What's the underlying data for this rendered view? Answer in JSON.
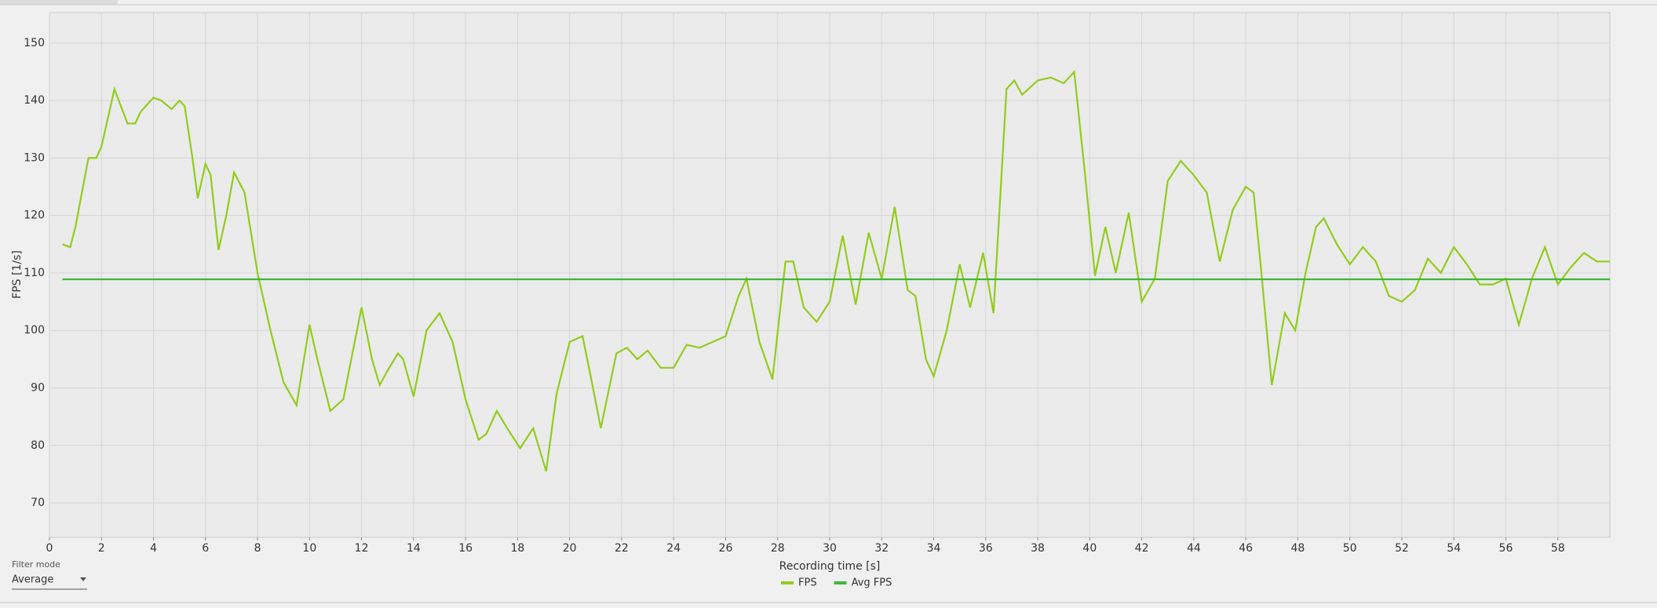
{
  "chart_data": {
    "type": "line",
    "x_label": "Recording time [s]",
    "y_label": "FPS [1/s]",
    "xlim": [
      0,
      60
    ],
    "ylim": [
      64,
      155.3
    ],
    "xticks": [
      0,
      2,
      4,
      6,
      8,
      10,
      12,
      14,
      16,
      18,
      20,
      22,
      24,
      26,
      28,
      30,
      32,
      34,
      36,
      38,
      40,
      42,
      44,
      46,
      48,
      50,
      52,
      54,
      56,
      58
    ],
    "yticks": [
      70,
      80,
      90,
      100,
      110,
      120,
      130,
      140,
      150
    ],
    "grid": true,
    "legend": "bottom",
    "series": [
      {
        "name": "FPS",
        "color": "#93cc1c",
        "x": [
          0.5,
          0.8,
          1.0,
          1.5,
          1.8,
          2.0,
          2.5,
          3.0,
          3.3,
          3.5,
          4.0,
          4.3,
          4.7,
          5.0,
          5.2,
          5.5,
          5.7,
          6.0,
          6.2,
          6.5,
          6.8,
          7.1,
          7.5,
          8.0,
          8.5,
          9.0,
          9.5,
          10.0,
          10.3,
          10.8,
          11.3,
          12.0,
          12.4,
          12.7,
          13.0,
          13.4,
          13.6,
          14.0,
          14.5,
          15.0,
          15.5,
          16.0,
          16.5,
          16.8,
          17.2,
          17.6,
          18.1,
          18.6,
          19.1,
          19.5,
          20.0,
          20.5,
          20.9,
          21.2,
          21.8,
          22.2,
          22.6,
          23.0,
          23.5,
          24.0,
          24.5,
          25.0,
          25.5,
          26.0,
          26.5,
          26.8,
          27.3,
          27.8,
          28.3,
          28.6,
          29.0,
          29.5,
          30.0,
          30.5,
          31.0,
          31.5,
          32.0,
          32.5,
          33.0,
          33.3,
          33.7,
          34.0,
          34.5,
          35.0,
          35.4,
          35.9,
          36.3,
          36.8,
          37.1,
          37.4,
          38.0,
          38.5,
          39.0,
          39.4,
          39.8,
          40.2,
          40.6,
          41.0,
          41.5,
          42.0,
          42.5,
          43.0,
          43.5,
          44.0,
          44.5,
          45.0,
          45.5,
          46.0,
          46.3,
          46.6,
          47.0,
          47.5,
          47.9,
          48.3,
          48.7,
          49.0,
          49.5,
          50.0,
          50.5,
          51.0,
          51.5,
          52.0,
          52.5,
          53.0,
          53.5,
          54.0,
          54.5,
          55.0,
          55.5,
          56.0,
          56.5,
          57.0,
          57.5,
          58.0,
          58.5,
          59.0,
          59.5,
          60.0
        ],
        "values": [
          115,
          114.5,
          118,
          130,
          130,
          132,
          142,
          136,
          136,
          138,
          140.5,
          140,
          138.5,
          140,
          139,
          130,
          123,
          129,
          127,
          114,
          120,
          127.5,
          124,
          110,
          100,
          91,
          87,
          101,
          95,
          86,
          88,
          104,
          95,
          90.5,
          93,
          96,
          95,
          88.5,
          100,
          103,
          98,
          88,
          81,
          82,
          86,
          83,
          79.5,
          83,
          75.5,
          89,
          98,
          99,
          90,
          83,
          96,
          97,
          95,
          96.5,
          93.5,
          93.5,
          97.5,
          97,
          98,
          99,
          106,
          109,
          98,
          91.5,
          112,
          112,
          104,
          101.5,
          105,
          116.5,
          104.5,
          117,
          109,
          121.5,
          107,
          106,
          95,
          92,
          100,
          111.5,
          104,
          113.5,
          103,
          142,
          143.5,
          141,
          143.5,
          144,
          143,
          145,
          128,
          109.5,
          118,
          110,
          120.5,
          105,
          109,
          126,
          129.5,
          127,
          124,
          112,
          121,
          125,
          124,
          110,
          90.5,
          103,
          100,
          110,
          118,
          119.5,
          115,
          111.5,
          114.5,
          112,
          106,
          105,
          107,
          112.5,
          110,
          114.5,
          111.5,
          108,
          108,
          109,
          101,
          109,
          114.5,
          108,
          111,
          113.5,
          112,
          112
        ]
      },
      {
        "name": "Avg FPS",
        "color": "#3db83d",
        "x": [
          0.5,
          60
        ],
        "values": [
          108.9,
          108.9
        ]
      }
    ]
  },
  "controls": {
    "filter_mode_label": "Filter mode",
    "filter_mode_value": "Average"
  }
}
